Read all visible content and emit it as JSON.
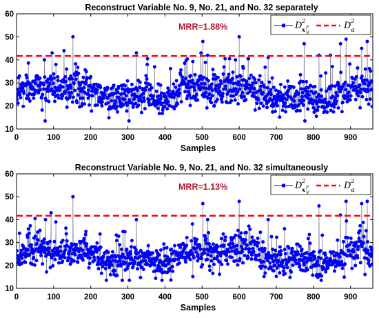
{
  "chart_data": [
    {
      "type": "line",
      "title": "Reconstruct Variable No. 9, No. 21, and No. 32 separately",
      "xlabel": "Samples",
      "ylabel": "",
      "xlim": [
        0,
        960
      ],
      "ylim": [
        10,
        60
      ],
      "xticks": [
        "0",
        "100",
        "200",
        "300",
        "400",
        "500",
        "600",
        "700",
        "800",
        "900"
      ],
      "yticks": [
        "10",
        "20",
        "30",
        "40",
        "50",
        "60"
      ],
      "annotation": "MRR=1.88%",
      "grid": false,
      "legend": {
        "placement": "top-right",
        "entries": [
          {
            "name": "D",
            "sup": "2",
            "sub": "x",
            "sub_sup": "r",
            "sub_sub": "v",
            "style": "blue line with filled circle markers"
          },
          {
            "name": "D",
            "sup": "2",
            "sub": "α",
            "style": "red dashed line"
          }
        ]
      },
      "threshold": 41.7,
      "series": [
        {
          "color": "#0000ff",
          "marker": "circle",
          "seed": 12345,
          "base_level": 26,
          "noise_std": 5,
          "n_points": 960,
          "peaks": [
            [
              8,
              33
            ],
            [
              75,
              40
            ],
            [
              96,
              43
            ],
            [
              106,
              38
            ],
            [
              128,
              44
            ],
            [
              135,
              36
            ],
            [
              152,
              50
            ],
            [
              323,
              43
            ],
            [
              352,
              38
            ],
            [
              372,
              37
            ],
            [
              497,
              43
            ],
            [
              502,
              48
            ],
            [
              515,
              42
            ],
            [
              590,
              40
            ],
            [
              600,
              50
            ],
            [
              678,
              41
            ],
            [
              775,
              47
            ],
            [
              815,
              42
            ],
            [
              846,
              42
            ],
            [
              873,
              47
            ],
            [
              888,
              49
            ],
            [
              930,
              45
            ],
            [
              945,
              48
            ]
          ]
        },
        {
          "color": "#ff0000",
          "dash": "dashed",
          "value": 41.7
        }
      ]
    },
    {
      "type": "line",
      "title": "Reconstruct Variable No. 9, No. 21, and No. 32 simultaneously",
      "xlabel": "Samples",
      "ylabel": "",
      "xlim": [
        0,
        960
      ],
      "ylim": [
        10,
        60
      ],
      "xticks": [
        "0",
        "100",
        "200",
        "300",
        "400",
        "500",
        "600",
        "700",
        "800",
        "900"
      ],
      "yticks": [
        "10",
        "20",
        "30",
        "40",
        "50",
        "60"
      ],
      "annotation": "MRR=1.13%",
      "grid": false,
      "legend": {
        "placement": "top-right",
        "entries": [
          {
            "name": "D",
            "sup": "2",
            "sub": "x",
            "sub_sup": "r",
            "sub_sub": "v",
            "style": "blue line with filled circle markers"
          },
          {
            "name": "D",
            "sup": "2",
            "sub": "α",
            "style": "red dashed line"
          }
        ]
      },
      "threshold": 41.7,
      "series": [
        {
          "color": "#0000ff",
          "marker": "circle",
          "seed": 67890,
          "base_level": 24,
          "noise_std": 4.5,
          "n_points": 960,
          "peaks": [
            [
              78,
              40
            ],
            [
              93,
              43
            ],
            [
              106,
              39
            ],
            [
              152,
              50
            ],
            [
              323,
              40
            ],
            [
              502,
              47
            ],
            [
              515,
              40
            ],
            [
              600,
              48
            ],
            [
              678,
              40
            ],
            [
              815,
              46
            ],
            [
              873,
              42
            ],
            [
              888,
              48
            ],
            [
              930,
              47
            ],
            [
              945,
              48
            ]
          ]
        },
        {
          "color": "#ff0000",
          "dash": "dashed",
          "value": 41.7
        }
      ]
    }
  ]
}
